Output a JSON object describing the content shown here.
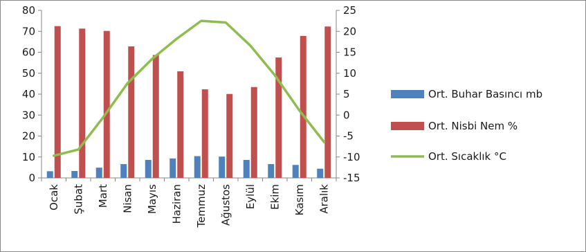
{
  "chart_data": {
    "type": "bar",
    "categories": [
      "Ocak",
      "Şubat",
      "Mart",
      "Nisan",
      "Mayıs",
      "Haziran",
      "Temmuz",
      "Ağustos",
      "Eylül",
      "Ekim",
      "Kasım",
      "Aralık"
    ],
    "series": [
      {
        "name": "Ort. Buhar Basıncı mb",
        "type": "bar",
        "axis": "left",
        "color": "#4f81bd",
        "values": [
          3.2,
          3.3,
          4.9,
          6.6,
          8.6,
          9.3,
          10.4,
          10.2,
          8.6,
          6.6,
          6.2,
          4.4
        ]
      },
      {
        "name": "Ort. Nisbi Nem %",
        "type": "bar",
        "axis": "left",
        "color": "#c0504d",
        "values": [
          72.5,
          71.3,
          70.2,
          62.8,
          58.7,
          50.9,
          42.3,
          40.1,
          43.4,
          57.5,
          67.8,
          72.3
        ]
      },
      {
        "name": "Ort. Sıcaklık °C",
        "type": "line",
        "axis": "right",
        "color": "#8fbc4f",
        "values": [
          -9.7,
          -8.2,
          -0.6,
          7.6,
          13.4,
          18.2,
          22.5,
          22.1,
          16.6,
          9.5,
          1.1,
          -6.4
        ]
      }
    ],
    "y_left": {
      "min": 0,
      "max": 80,
      "ticks": [
        0,
        10,
        20,
        30,
        40,
        50,
        60,
        70,
        80
      ]
    },
    "y_right": {
      "min": -15,
      "max": 25,
      "ticks": [
        -15,
        -10,
        -5,
        0,
        5,
        10,
        15,
        20,
        25
      ]
    },
    "grid": false,
    "legend_position": "right",
    "title": "",
    "xlabel": "",
    "ylabel": ""
  }
}
